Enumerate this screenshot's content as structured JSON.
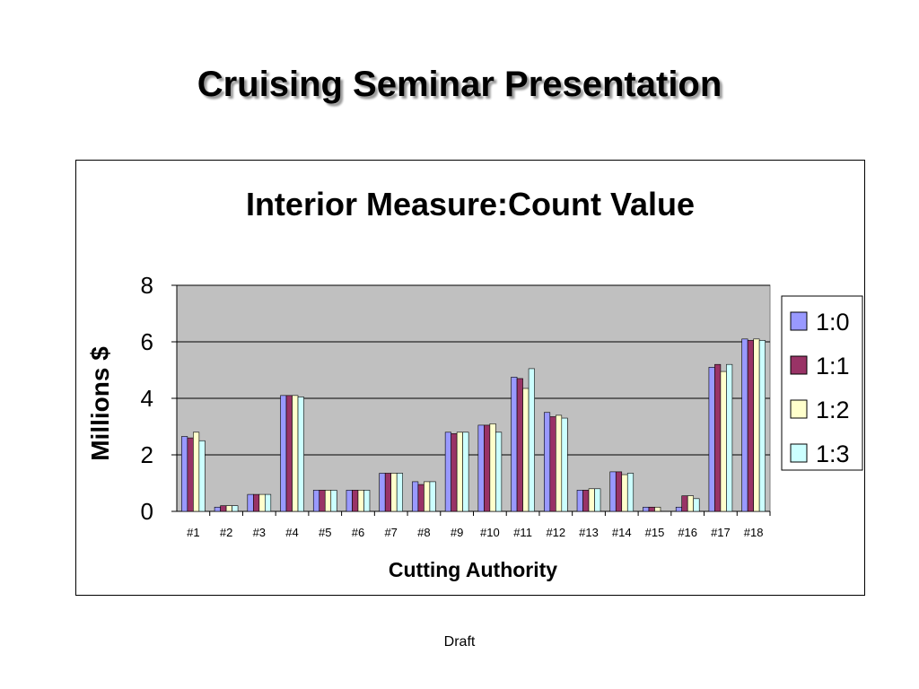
{
  "slide": {
    "title": "Cruising Seminar Presentation",
    "footer": "Draft"
  },
  "chart_data": {
    "type": "bar",
    "title": "Interior Measure:Count Value",
    "xlabel": "Cutting Authority",
    "ylabel": "Millions $",
    "ylim": [
      0,
      8
    ],
    "yticks": [
      0,
      2,
      4,
      6,
      8
    ],
    "grid": true,
    "legend_position": "right",
    "categories": [
      "#1",
      "#2",
      "#3",
      "#4",
      "#5",
      "#6",
      "#7",
      "#8",
      "#9",
      "#10",
      "#11",
      "#12",
      "#13",
      "#14",
      "#15",
      "#16",
      "#17",
      "#18"
    ],
    "series": [
      {
        "name": "1:0",
        "color": "#9999ff",
        "values": [
          2.65,
          0.15,
          0.6,
          4.1,
          0.75,
          0.75,
          1.35,
          1.05,
          2.8,
          3.05,
          4.75,
          3.5,
          0.75,
          1.4,
          0.15,
          0.15,
          5.1,
          6.1
        ]
      },
      {
        "name": "1:1",
        "color": "#993366",
        "values": [
          2.6,
          0.2,
          0.6,
          4.1,
          0.75,
          0.75,
          1.35,
          0.95,
          2.75,
          3.05,
          4.7,
          3.35,
          0.75,
          1.4,
          0.15,
          0.55,
          5.2,
          6.05
        ]
      },
      {
        "name": "1:2",
        "color": "#ffffcc",
        "values": [
          2.8,
          0.2,
          0.6,
          4.1,
          0.75,
          0.75,
          1.35,
          1.05,
          2.8,
          3.1,
          4.35,
          3.4,
          0.8,
          1.3,
          0.15,
          0.55,
          4.95,
          6.1
        ]
      },
      {
        "name": "1:3",
        "color": "#ccffff",
        "values": [
          2.5,
          0.2,
          0.6,
          4.05,
          0.75,
          0.75,
          1.35,
          1.05,
          2.8,
          2.8,
          5.05,
          3.3,
          0.8,
          1.35,
          0.0,
          0.45,
          5.2,
          6.05
        ]
      }
    ]
  }
}
